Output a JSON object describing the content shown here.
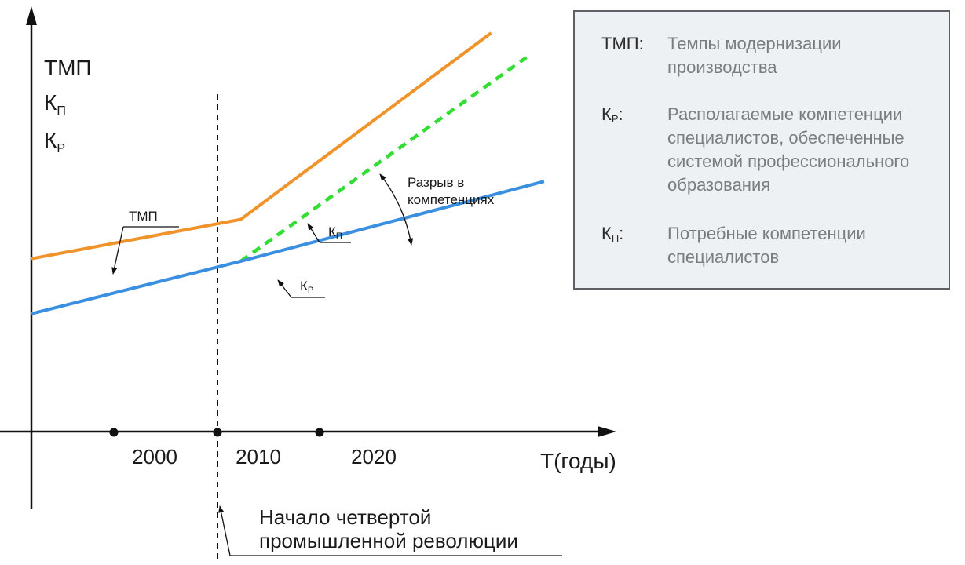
{
  "chart_data": {
    "type": "line",
    "title": "",
    "xlabel": "Т(годы)",
    "ylabel_lines": [
      "ТМП",
      "К",
      "К"
    ],
    "ylabel_subscripts": [
      "",
      "П",
      "Р"
    ],
    "x_ticks": [
      2000,
      2010,
      2020
    ],
    "xlim": [
      1992.2,
      2032
    ],
    "ylim": [
      0,
      100
    ],
    "vertical_marker": {
      "x": 2010,
      "label": "Начало четвертой\nпромышленной революции"
    },
    "series": [
      {
        "name": "ТМП",
        "color": "#f0932b",
        "style": "solid",
        "points": [
          [
            1992.2,
            41.8
          ],
          [
            2010,
            51.3
          ],
          [
            2031.3,
            96.4
          ]
        ]
      },
      {
        "name": "Кп",
        "color": "#33dd33",
        "style": "dashed",
        "points": [
          [
            2010,
            41.2
          ],
          [
            2034.3,
            90.5
          ]
        ]
      },
      {
        "name": "Кр",
        "color": "#3b8fe0",
        "style": "solid",
        "points": [
          [
            1992.2,
            28.5
          ],
          [
            2010,
            41.2
          ],
          [
            2035.8,
            60.5
          ]
        ]
      }
    ],
    "annotations": [
      {
        "text": "ТМП",
        "sub": "",
        "target": "ТМП"
      },
      {
        "text": "К",
        "sub": "П",
        "target": "Кп"
      },
      {
        "text": "К",
        "sub": "Р",
        "target": "Кр"
      },
      {
        "text": "Разрыв в\nкомпетенциях",
        "sub": "",
        "target": "gap"
      }
    ]
  },
  "legend": [
    {
      "key": "ТМП",
      "sub": "",
      "desc": "Темпы модернизации\nпроизводства"
    },
    {
      "key": "К",
      "sub": "Р",
      "desc": "Располагаемые компетенции\nспециалистов, обеспеченные\nсистемой профессионального\nобразования"
    },
    {
      "key": "К",
      "sub": "П",
      "desc": "Потребные компетенции\nспециалистов"
    }
  ],
  "colors": {
    "axis": "#111111",
    "text": "#1a1a1a"
  }
}
